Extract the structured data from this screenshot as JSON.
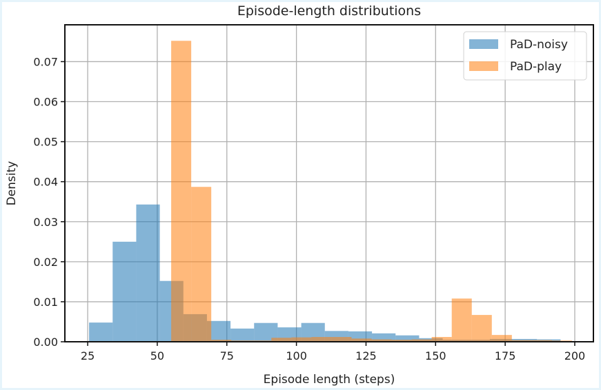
{
  "chart_data": {
    "type": "histogram",
    "title": "Episode-length distributions",
    "xlabel": "Episode length (steps)",
    "ylabel": "Density",
    "xlim": [
      16.8,
      206.7
    ],
    "ylim": [
      0,
      0.0792
    ],
    "xticks": [
      25,
      50,
      75,
      100,
      125,
      150,
      175,
      200
    ],
    "xtick_labels": [
      "25",
      "50",
      "75",
      "100",
      "125",
      "150",
      "175",
      "200"
    ],
    "yticks": [
      0.0,
      0.01,
      0.02,
      0.03,
      0.04,
      0.05,
      0.06,
      0.07
    ],
    "ytick_labels": [
      "0.00",
      "0.01",
      "0.02",
      "0.03",
      "0.04",
      "0.05",
      "0.06",
      "0.07"
    ],
    "grid": true,
    "legend_position": "upper right",
    "series": [
      {
        "name": "PaD-noisy",
        "color": "#1f77b4",
        "alpha": 0.55,
        "bin_start": 25.5,
        "bin_width": 8.47,
        "values": [
          0.0048,
          0.025,
          0.0343,
          0.0152,
          0.0069,
          0.0052,
          0.0033,
          0.0047,
          0.0036,
          0.0047,
          0.0027,
          0.0026,
          0.0021,
          0.0016,
          0.0009,
          0.0005,
          0.0005,
          0.0007,
          0.0007,
          0.0006
        ]
      },
      {
        "name": "PaD-play",
        "color": "#ff7f0e",
        "alpha": 0.55,
        "bin_start": 55.0,
        "bin_width": 7.2,
        "values": [
          0.0752,
          0.0387,
          0.0005,
          0.0003,
          0.0003,
          0.001,
          0.0011,
          0.0012,
          0.0012,
          0.0008,
          0.0006,
          0.0005,
          0.0006,
          0.0012,
          0.0108,
          0.0067,
          0.0017,
          0.0004,
          0.0004,
          0.0003
        ]
      }
    ]
  }
}
